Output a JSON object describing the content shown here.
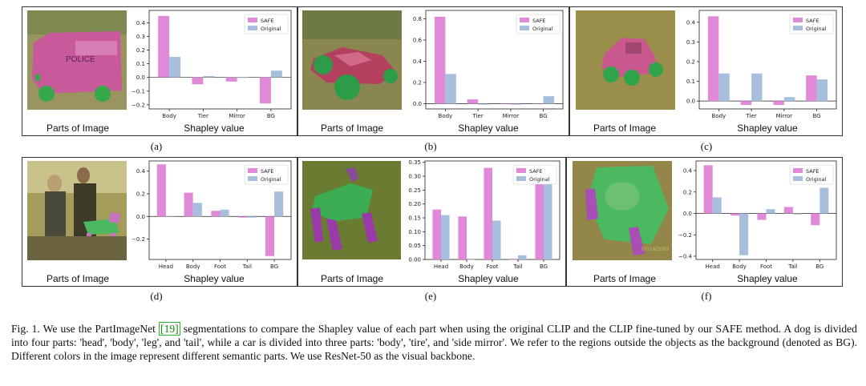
{
  "labels": {
    "parts_of_image": "Parts of Image",
    "shapley_value": "Shapley value"
  },
  "legend": {
    "safe": "SAFE",
    "original": "Original"
  },
  "colors": {
    "safe": "#e089d8",
    "original": "#a7bfdc"
  },
  "panels": [
    {
      "sub": "(a)",
      "image": "police-van-segmentation"
    },
    {
      "sub": "(b)",
      "image": "race-car-segmentation"
    },
    {
      "sub": "(c)",
      "image": "vintage-car-segmentation"
    },
    {
      "sub": "(d)",
      "image": "dog-show-segmentation"
    },
    {
      "sub": "(e)",
      "image": "greyhound-segmentation"
    },
    {
      "sub": "(f)",
      "image": "fluffy-dog-segmentation"
    }
  ],
  "chart_data": [
    {
      "type": "bar",
      "categories": [
        "Body",
        "Tier",
        "Mirror",
        "BG"
      ],
      "series": [
        {
          "name": "SAFE",
          "values": [
            0.45,
            -0.05,
            -0.03,
            -0.19
          ]
        },
        {
          "name": "Original",
          "values": [
            0.15,
            0.01,
            0.0,
            0.05
          ]
        }
      ],
      "ylim": [
        -0.23,
        0.49
      ],
      "yticks": [
        0.4,
        0.3,
        0.2,
        0.1,
        0.0,
        -0.1,
        -0.2
      ],
      "ytick_labels": [
        "0.4",
        "0.3",
        "0.2",
        "0.1",
        "0.0",
        "−0.1",
        "−0.2"
      ],
      "legend": "top-right"
    },
    {
      "type": "bar",
      "categories": [
        "Body",
        "Tier",
        "Mirror",
        "BG"
      ],
      "series": [
        {
          "name": "SAFE",
          "values": [
            0.82,
            0.04,
            0.0,
            0.0
          ]
        },
        {
          "name": "Original",
          "values": [
            0.28,
            -0.01,
            -0.01,
            0.07
          ]
        }
      ],
      "ylim": [
        -0.05,
        0.88
      ],
      "yticks": [
        0.8,
        0.6,
        0.4,
        0.2,
        0.0
      ],
      "ytick_labels": [
        "0.8",
        "0.6",
        "0.4",
        "0.2",
        "0.0"
      ],
      "legend": "top-right"
    },
    {
      "type": "bar",
      "categories": [
        "Body",
        "Tier",
        "Mirror",
        "BG"
      ],
      "series": [
        {
          "name": "SAFE",
          "values": [
            0.43,
            -0.02,
            -0.02,
            0.13
          ]
        },
        {
          "name": "Original",
          "values": [
            0.14,
            0.14,
            0.02,
            0.11
          ]
        }
      ],
      "ylim": [
        -0.04,
        0.46
      ],
      "yticks": [
        0.4,
        0.3,
        0.2,
        0.1,
        0.0
      ],
      "ytick_labels": [
        "0.4",
        "0.3",
        "0.2",
        "0.1",
        "0.0"
      ],
      "legend": "top-right"
    },
    {
      "type": "bar",
      "categories": [
        "Head",
        "Body",
        "Foot",
        "Tail",
        "BG"
      ],
      "series": [
        {
          "name": "SAFE",
          "values": [
            0.46,
            0.21,
            0.05,
            -0.01,
            -0.35
          ]
        },
        {
          "name": "Original",
          "values": [
            0.0,
            0.12,
            0.06,
            -0.01,
            0.22
          ]
        }
      ],
      "ylim": [
        -0.38,
        0.49
      ],
      "yticks": [
        0.4,
        0.2,
        0.0,
        -0.2
      ],
      "ytick_labels": [
        "0.4",
        "0.2",
        "0.0",
        "−0.2"
      ],
      "legend": "top-right"
    },
    {
      "type": "bar",
      "categories": [
        "Head",
        "Body",
        "Foot",
        "Tail",
        "BG"
      ],
      "series": [
        {
          "name": "SAFE",
          "values": [
            0.18,
            0.155,
            0.33,
            0.0,
            0.33
          ]
        },
        {
          "name": "Original",
          "values": [
            0.16,
            0.0,
            0.14,
            0.015,
            0.3
          ]
        }
      ],
      "ylim": [
        0.0,
        0.355
      ],
      "yticks": [
        0.35,
        0.3,
        0.25,
        0.2,
        0.15,
        0.1,
        0.05,
        0.0
      ],
      "ytick_labels": [
        "0.35",
        "0.30",
        "0.25",
        "0.20",
        "0.15",
        "0.10",
        "0.05",
        "0.00"
      ],
      "legend": "top-right"
    },
    {
      "type": "bar",
      "categories": [
        "Head",
        "Body",
        "Foot",
        "Tail",
        "BG"
      ],
      "series": [
        {
          "name": "SAFE",
          "values": [
            0.45,
            -0.02,
            -0.06,
            0.06,
            -0.11
          ]
        },
        {
          "name": "Original",
          "values": [
            0.15,
            -0.39,
            0.04,
            -0.01,
            0.24
          ]
        }
      ],
      "ylim": [
        -0.43,
        0.49
      ],
      "yticks": [
        0.4,
        0.2,
        0.0,
        -0.2,
        -0.4
      ],
      "ytick_labels": [
        "0.4",
        "0.2",
        "0.0",
        "−0.2",
        "−0.4"
      ],
      "legend": "top-right"
    }
  ],
  "caption": {
    "prefix": "Fig. 1.  We use the PartImageNet ",
    "ref": "[19]",
    "text": " segmentations to compare the Shapley value of each part when using the original CLIP and the CLIP fine-tuned by our SAFE method. A dog is divided into four parts: 'head', 'body', 'leg', and 'tail', while a car is divided into three parts: 'body', 'tire', and 'side mirror'. We refer to the regions outside the objects as the background (denoted as BG). Different colors in the image represent different semantic parts. We use ResNet-50 as the visual backbone."
  }
}
